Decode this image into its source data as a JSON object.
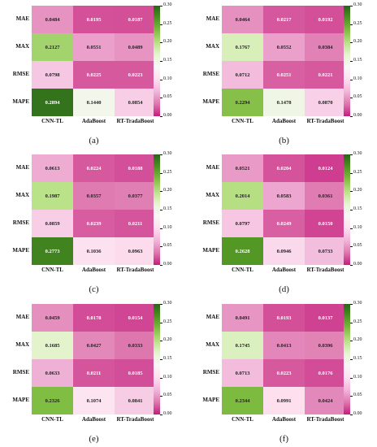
{
  "chart_data": [
    {
      "type": "heatmap",
      "caption": "(a)",
      "rows": [
        "MAE",
        "MAX",
        "RMSE",
        "MAPE"
      ],
      "cols": [
        "CNN-TL",
        "AdaBoost",
        "RT-TradaBoost"
      ],
      "values": [
        [
          "0.0484",
          "0.0195",
          "0.0187"
        ],
        [
          "0.2127",
          "0.0551",
          "0.0489"
        ],
        [
          "0.0798",
          "0.0225",
          "0.0223"
        ],
        [
          "0.2894",
          "0.1440",
          "0.0854"
        ]
      ],
      "colorbar_ticks": [
        "0.30",
        "0.25",
        "0.20",
        "0.15",
        "0.10",
        "0.05",
        "0.00"
      ],
      "vrange": [
        0,
        0.3
      ]
    },
    {
      "type": "heatmap",
      "caption": "(b)",
      "rows": [
        "MAE",
        "MAX",
        "RMSE",
        "MAPE"
      ],
      "cols": [
        "CNN-TL",
        "AdaBoost",
        "RT-TradaBoost"
      ],
      "values": [
        [
          "0.0464",
          "0.0217",
          "0.0192"
        ],
        [
          "0.1767",
          "0.0552",
          "0.0384"
        ],
        [
          "0.0712",
          "0.0251",
          "0.0221"
        ],
        [
          "0.2294",
          "0.1478",
          "0.0870"
        ]
      ],
      "colorbar_ticks": [
        "0.30",
        "0.25",
        "0.20",
        "0.15",
        "0.10",
        "0.05",
        "0.00"
      ],
      "vrange": [
        0,
        0.3
      ]
    },
    {
      "type": "heatmap",
      "caption": "(c)",
      "rows": [
        "MAE",
        "MAX",
        "RMSE",
        "MAPE"
      ],
      "cols": [
        "CNN-TL",
        "AdaBoost",
        "RT-TradaBoost"
      ],
      "values": [
        [
          "0.0613",
          "0.0224",
          "0.0188"
        ],
        [
          "0.1987",
          "0.0357",
          "0.0377"
        ],
        [
          "0.0859",
          "0.0239",
          "0.0211"
        ],
        [
          "0.2773",
          "0.1036",
          "0.0963"
        ]
      ],
      "colorbar_ticks": [
        "0.30",
        "0.25",
        "0.20",
        "0.15",
        "0.10",
        "0.05",
        "0.00"
      ],
      "vrange": [
        0,
        0.3
      ]
    },
    {
      "type": "heatmap",
      "caption": "(d)",
      "rows": [
        "MAE",
        "MAX",
        "RMSE",
        "MAPE"
      ],
      "cols": [
        "CNN-TL",
        "AdaBoost",
        "RT-TradaBoost"
      ],
      "values": [
        [
          "0.0521",
          "0.0204",
          "0.0124"
        ],
        [
          "0.2014",
          "0.0583",
          "0.0361"
        ],
        [
          "0.0797",
          "0.0249",
          "0.0150"
        ],
        [
          "0.2628",
          "0.0946",
          "0.0733"
        ]
      ],
      "colorbar_ticks": [
        "0.30",
        "0.25",
        "0.20",
        "0.15",
        "0.10",
        "0.05",
        "0.00"
      ],
      "vrange": [
        0,
        0.3
      ]
    },
    {
      "type": "heatmap",
      "caption": "(e)",
      "rows": [
        "MAE",
        "MAX",
        "RMSE",
        "MAPE"
      ],
      "cols": [
        "CNN-TL",
        "AdaBoost",
        "RT-TradaBoost"
      ],
      "values": [
        [
          "0.0459",
          "0.0178",
          "0.0154"
        ],
        [
          "0.1685",
          "0.0427",
          "0.0333"
        ],
        [
          "0.0633",
          "0.0211",
          "0.0185"
        ],
        [
          "0.2326",
          "0.1074",
          "0.0841"
        ]
      ],
      "colorbar_ticks": [
        "0.30",
        "0.25",
        "0.20",
        "0.15",
        "0.10",
        "0.05",
        "0.00"
      ],
      "vrange": [
        0,
        0.3
      ]
    },
    {
      "type": "heatmap",
      "caption": "(f)",
      "rows": [
        "MAE",
        "MAX",
        "RMSE",
        "MAPE"
      ],
      "cols": [
        "CNN-TL",
        "AdaBoost",
        "RT-TradaBoost"
      ],
      "values": [
        [
          "0.0491",
          "0.0193",
          "0.0137"
        ],
        [
          "0.1745",
          "0.0413",
          "0.0396"
        ],
        [
          "0.0713",
          "0.0223",
          "0.0176"
        ],
        [
          "0.2344",
          "0.0991",
          "0.0424"
        ]
      ],
      "colorbar_ticks": [
        "0.30",
        "0.25",
        "0.20",
        "0.15",
        "0.10",
        "0.05",
        "0.00"
      ],
      "vrange": [
        0,
        0.3
      ]
    }
  ],
  "colormap": [
    "#c51b7d",
    "#de77ae",
    "#f1b6da",
    "#fde0ef",
    "#f7f7f7",
    "#e6f5d0",
    "#b8e186",
    "#7fbc41",
    "#4d9221",
    "#276419"
  ]
}
